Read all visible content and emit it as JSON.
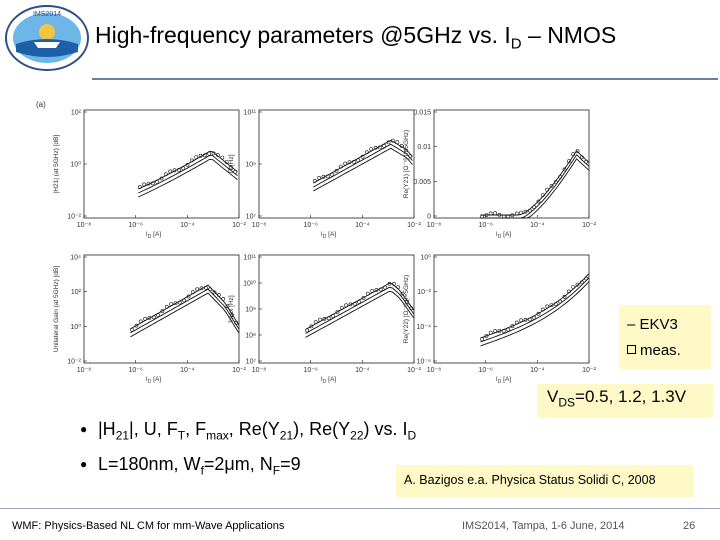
{
  "logo": {
    "text": "IMS2014 · Tampa Bay, Florida",
    "colors": {
      "sky": "#6fb6e8",
      "sea": "#1e5fa8",
      "sun": "#f5c542",
      "ring": "#2a4f8a"
    }
  },
  "title": {
    "main": "High-frequency parameters @5GHz vs. I",
    "sub": "D",
    "tail": " – NMOS"
  },
  "figure": {
    "panel_letter": "(a)",
    "x_ticks": [
      "10⁻⁸",
      "10⁻⁶",
      "10⁻⁴",
      "10⁻²"
    ],
    "x_label_text": "I",
    "x_label_sub": "D",
    "x_label_unit": " [A]",
    "panels": [
      {
        "ylabel": "|H21| (at 5GHz) [dB]",
        "yticks": [
          "10²",
          "10⁰",
          "10⁻²"
        ]
      },
      {
        "ylabel": "fT [Hz]",
        "yticks": [
          "10¹¹",
          "10⁹",
          "10⁷"
        ]
      },
      {
        "ylabel": "Re(Y21) [Ω⁻¹] (f=5GHz)",
        "yticks": [
          "0.015",
          "0.01",
          "0.005",
          "0"
        ]
      },
      {
        "ylabel": "Unilateral Gain (at 5GHz) [dB]",
        "yticks": [
          "10⁴",
          "10²",
          "10⁰",
          "10⁻²"
        ]
      },
      {
        "ylabel": "fmax [Hz]",
        "yticks": [
          "10¹¹",
          "10¹⁰",
          "10⁹",
          "10⁸",
          "10⁷"
        ]
      },
      {
        "ylabel": "Re(Y22) [Ω⁻¹] (f=5GHz)",
        "yticks": [
          "10⁰",
          "10⁻²",
          "10⁻⁴",
          "10⁻⁶"
        ]
      }
    ]
  },
  "legend": {
    "model": "– EKV3",
    "meas": "meas."
  },
  "bias": {
    "prefix": "V",
    "sub": "DS",
    "values": "=0.5, 1.2, 1.3V"
  },
  "bullets": [
    {
      "p1": "|H",
      "s1": "21",
      "p2": "|, U, F",
      "s2": "T",
      "p3": ", F",
      "s3": "max",
      "p4": ", Re(Y",
      "s4": "21",
      "p5": "), Re(Y",
      "s5": "22",
      "p6": ") vs. I",
      "s6": "D"
    },
    {
      "p1": "L=180nm, W",
      "s1": "f",
      "p2": "=2μm, N",
      "s2": "F",
      "p3": "=9"
    }
  ],
  "citation": "A. Bazigos e.a. Physica Status Solidi C, 2008",
  "footer": {
    "left": "WMF: Physics-Based NL CM for mm-Wave Applications",
    "middle": "IMS2014, Tampa, 1-6 June, 2014",
    "page": "26"
  },
  "colors": {
    "rule": "#6b7fa8",
    "highlight": "#fff9c8"
  }
}
